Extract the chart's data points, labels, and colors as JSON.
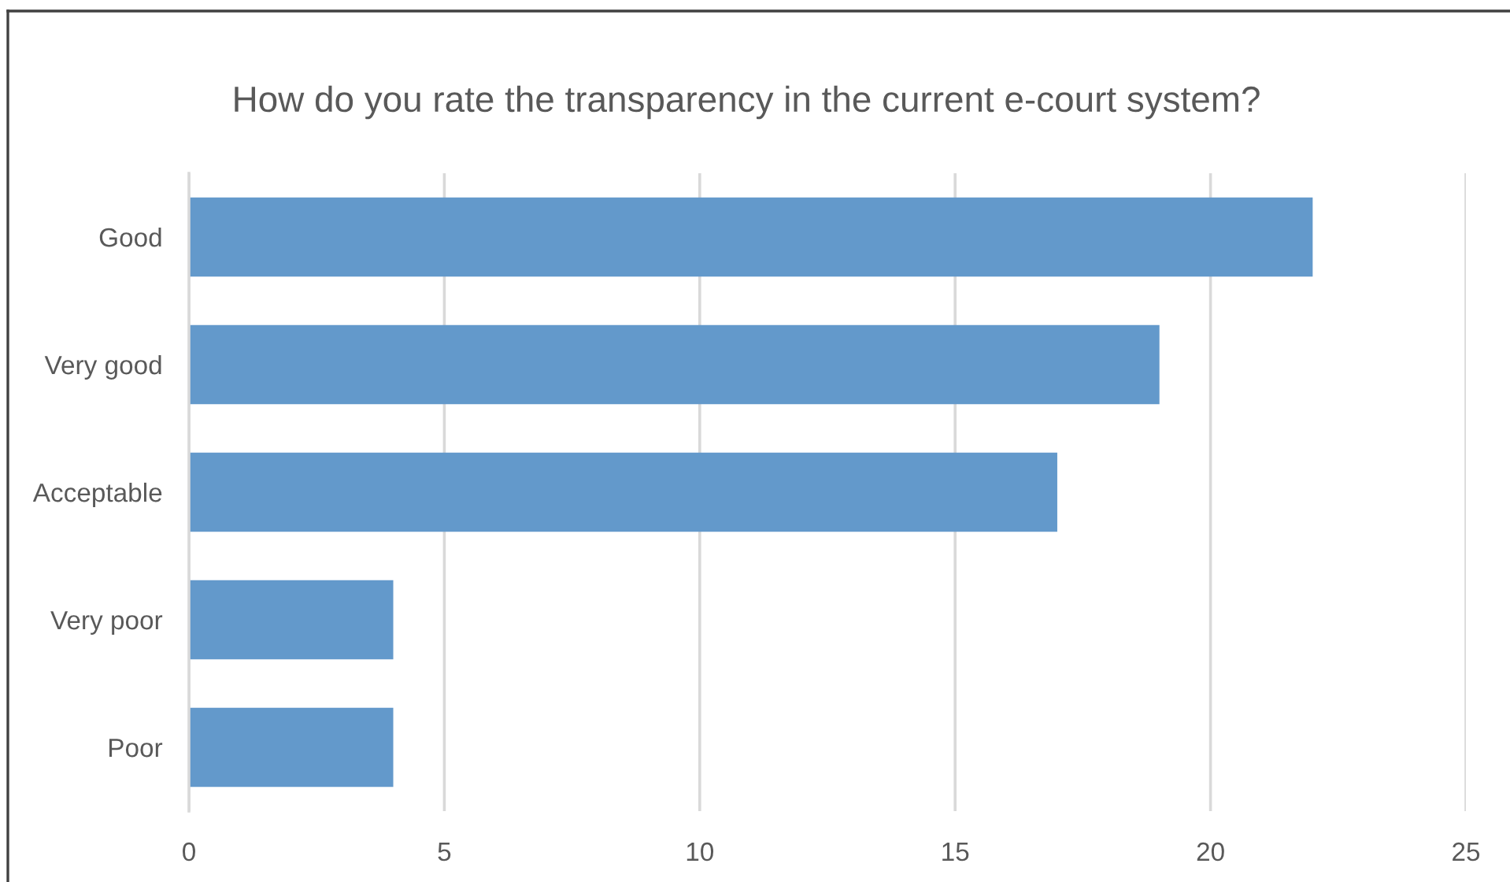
{
  "chart_data": {
    "type": "bar",
    "orientation": "horizontal",
    "title": "How do you rate the transparency in the current e-court system?",
    "categories": [
      "Good",
      "Very good",
      "Acceptable",
      "Very poor",
      "Poor"
    ],
    "values": [
      22,
      19,
      17,
      4,
      4
    ],
    "color": "#6399cb",
    "xlim": [
      0,
      25
    ],
    "xticks": [
      0,
      5,
      10,
      15,
      20,
      25
    ],
    "grid": "x",
    "legend": false
  }
}
